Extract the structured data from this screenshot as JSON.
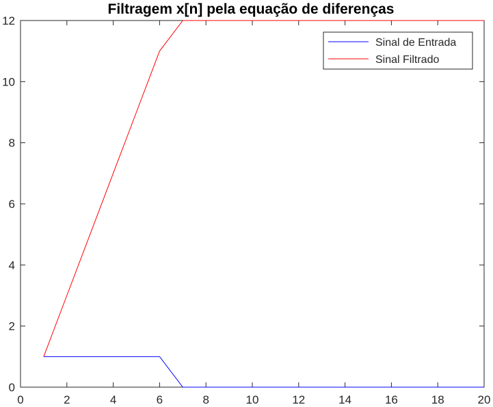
{
  "chart_data": {
    "type": "line",
    "title": "Filtragem x[n] pela equação de diferenças",
    "xlabel": "",
    "ylabel": "",
    "xlim": [
      0,
      20
    ],
    "ylim": [
      0,
      12
    ],
    "xticks": [
      0,
      2,
      4,
      6,
      8,
      10,
      12,
      14,
      16,
      18,
      20
    ],
    "yticks": [
      0,
      2,
      4,
      6,
      8,
      10,
      12
    ],
    "grid": false,
    "legend_position": "top-right",
    "series": [
      {
        "name": "Sinal de Entrada",
        "color": "#0000ff",
        "x": [
          1,
          2,
          3,
          4,
          5,
          6,
          7,
          8,
          9,
          10,
          11,
          12,
          13,
          14,
          15,
          16,
          17,
          18,
          19,
          20
        ],
        "y": [
          1,
          1,
          1,
          1,
          1,
          1,
          0,
          0,
          0,
          0,
          0,
          0,
          0,
          0,
          0,
          0,
          0,
          0,
          0,
          0
        ]
      },
      {
        "name": "Sinal Filtrado",
        "color": "#ff0000",
        "x": [
          1,
          2,
          3,
          4,
          5,
          6,
          7,
          8,
          9,
          10,
          11,
          12,
          13,
          14,
          15,
          16,
          17,
          18,
          19,
          20
        ],
        "y": [
          1,
          3,
          5,
          7,
          9,
          11,
          12,
          12,
          12,
          12,
          12,
          12,
          12,
          12,
          12,
          12,
          12,
          12,
          12,
          12
        ]
      }
    ]
  }
}
